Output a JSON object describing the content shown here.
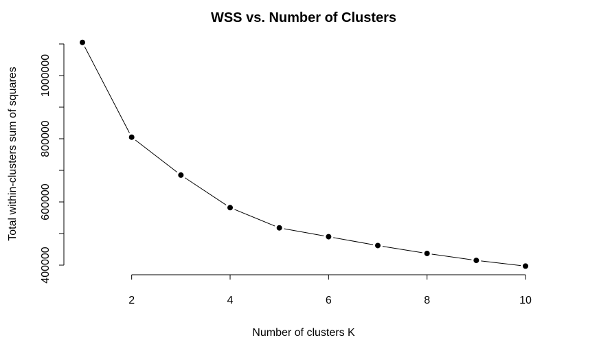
{
  "chart_data": {
    "type": "line",
    "title": "WSS vs. Number of Clusters",
    "xlabel": "Number of clusters K",
    "ylabel": "Total within-clusters sum of squares",
    "x": [
      1,
      2,
      3,
      4,
      5,
      6,
      7,
      8,
      9,
      10
    ],
    "values": [
      1105000,
      805000,
      685000,
      582000,
      518000,
      490000,
      462000,
      437000,
      415000,
      397000
    ],
    "xlim": [
      1,
      10
    ],
    "ylim": [
      400000,
      1100000
    ],
    "x_ticks": [
      2,
      4,
      6,
      8,
      10
    ],
    "y_ticks": [
      400000,
      600000,
      800000,
      1000000
    ],
    "x_tick_labels": [
      "2",
      "4",
      "6",
      "8",
      "10"
    ],
    "y_tick_labels": [
      "400000",
      "600000",
      "800000",
      "1000000"
    ],
    "grid": false,
    "markers": "filled-circle",
    "line_color": "#000000"
  }
}
